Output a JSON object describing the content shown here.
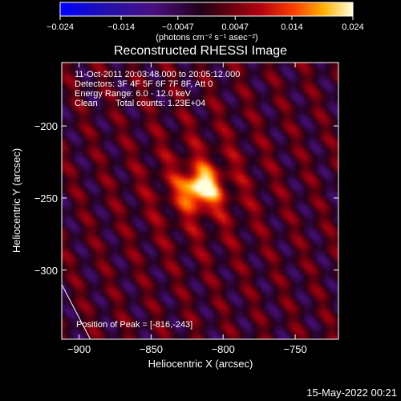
{
  "chart_data": {
    "type": "heatmap",
    "title": "Reconstructed RHESSI Image",
    "xlabel": "Heliocentric X (arcsec)",
    "ylabel": "Heliocentric Y (arcsec)",
    "xlim": [
      -912,
      -720
    ],
    "ylim": [
      -348,
      -156
    ],
    "xticks": [
      -900,
      -850,
      -800,
      -750
    ],
    "yticks": [
      -200,
      -250,
      -300
    ],
    "xtick_labels": [
      "−900",
      "−850",
      "−800",
      "−750"
    ],
    "ytick_labels": [
      "−200",
      "−250",
      "−300"
    ],
    "colorbar": {
      "range": [
        -0.024,
        0.024
      ],
      "ticks": [
        -0.024,
        -0.014,
        -0.0047,
        0.0047,
        0.014,
        0.024
      ],
      "tick_labels": [
        "−0.024",
        "−0.014",
        "−0.0047",
        "0.0047",
        "0.014",
        "0.024"
      ],
      "unit_label": "(photons cm⁻² s⁻¹ asec⁻²)"
    },
    "peak": {
      "x": -816,
      "y": -243,
      "value": 0.024
    },
    "limb_line": [
      [
        -912,
        -310
      ],
      [
        -888,
        -356
      ]
    ]
  },
  "info": {
    "time_range": "11-Oct-2011 20:03:48.000 to 20:05:12.000",
    "detectors": "Detectors: 3F 4F 5F 6F 7F 8F, Att 0",
    "energy": "Energy Range: 6.0 - 12.0 keV",
    "method": "Clean",
    "counts": "Total counts: 1.23E+04",
    "peak_text": "Position of Peak = [-816,-243]"
  },
  "footer": {
    "date": "15-May-2022 00:21"
  }
}
